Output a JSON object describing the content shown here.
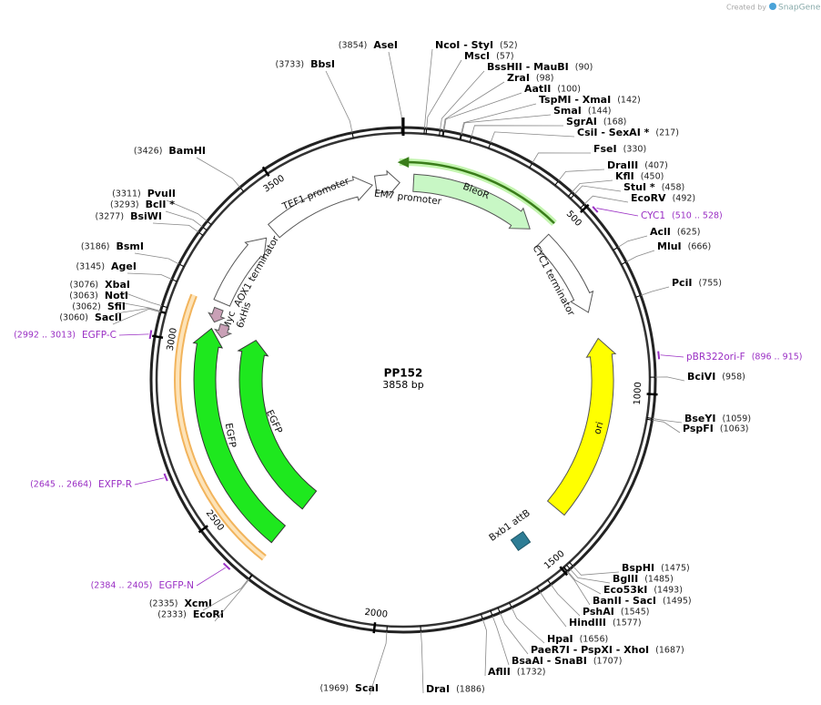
{
  "credit": "Created by",
  "brand": "SnapGene",
  "map": {
    "name": "PP152",
    "length": "3858 bp"
  },
  "ruler": [
    500,
    1000,
    1500,
    2000,
    2500,
    3000,
    3500
  ],
  "sites": [
    {
      "name": "AseI",
      "position": "(3854)"
    },
    {
      "name": "BbsI",
      "position": "(3733)"
    },
    {
      "name": "BamHI",
      "position": "(3426)"
    },
    {
      "name": "PvuII",
      "position": "(3311)"
    },
    {
      "name": "BclI *",
      "position": "(3293)"
    },
    {
      "name": "BsiWI",
      "position": "(3277)"
    },
    {
      "name": "BsmI",
      "position": "(3186)"
    },
    {
      "name": "AgeI",
      "position": "(3145)"
    },
    {
      "name": "XbaI",
      "position": "(3076)"
    },
    {
      "name": "NotI",
      "position": "(3063)"
    },
    {
      "name": "SfiI",
      "position": "(3062)"
    },
    {
      "name": "SacII",
      "position": "(3060)"
    },
    {
      "name": "XcmI",
      "position": "(2335)"
    },
    {
      "name": "EcoRI",
      "position": "(2333)"
    },
    {
      "name": "ScaI",
      "position": "(1969)"
    },
    {
      "name": "NcoI  -  StyI",
      "position": "(52)"
    },
    {
      "name": "MscI",
      "position": "(57)"
    },
    {
      "name": "BssHII  -  MauBI",
      "position": "(90)"
    },
    {
      "name": "ZraI",
      "position": "(98)"
    },
    {
      "name": "AatII",
      "position": "(100)"
    },
    {
      "name": "TspMI  -  XmaI",
      "position": "(142)"
    },
    {
      "name": "SmaI",
      "position": "(144)"
    },
    {
      "name": "SgrAI",
      "position": "(168)"
    },
    {
      "name": "CsiI  -  SexAI *",
      "position": "(217)"
    },
    {
      "name": "FseI",
      "position": "(330)"
    },
    {
      "name": "DraIII",
      "position": "(407)"
    },
    {
      "name": "KflI",
      "position": "(450)"
    },
    {
      "name": "StuI *",
      "position": "(458)"
    },
    {
      "name": "EcoRV",
      "position": "(492)"
    },
    {
      "name": "AclI",
      "position": "(625)"
    },
    {
      "name": "MluI",
      "position": "(666)"
    },
    {
      "name": "PciI",
      "position": "(755)"
    },
    {
      "name": "BciVI",
      "position": "(958)"
    },
    {
      "name": "BseYI",
      "position": "(1059)"
    },
    {
      "name": "PspFI",
      "position": "(1063)"
    },
    {
      "name": "BspHI",
      "position": "(1475)"
    },
    {
      "name": "BglII",
      "position": "(1485)"
    },
    {
      "name": "Eco53kI",
      "position": "(1493)"
    },
    {
      "name": "BanII  -  SacI",
      "position": "(1495)"
    },
    {
      "name": "PshAI",
      "position": "(1545)"
    },
    {
      "name": "HindIII",
      "position": "(1577)"
    },
    {
      "name": "HpaI",
      "position": "(1656)"
    },
    {
      "name": "PaeR7I  -  PspXI  -  XhoI",
      "position": "(1687)"
    },
    {
      "name": "BsaAI  -  SnaBI",
      "position": "(1707)"
    },
    {
      "name": "AflII",
      "position": "(1732)"
    },
    {
      "name": "DraI",
      "position": "(1886)"
    }
  ],
  "primers": [
    {
      "name": "CYC1",
      "range": "(510 .. 528)"
    },
    {
      "name": "pBR322ori-F",
      "range": "(896 .. 915)"
    },
    {
      "name": "EXFP-R",
      "range": "(2645 .. 2664)"
    },
    {
      "name": "EGFP-N",
      "range": "(2384 .. 2405)"
    },
    {
      "name": "EGFP-C",
      "range": "(2992 .. 3013)"
    }
  ],
  "features": [
    {
      "label": "TEF1 promoter"
    },
    {
      "label": "EM7 promoter"
    },
    {
      "label": "BleoR"
    },
    {
      "label": "CYC1 terminator"
    },
    {
      "label": "AOX1 terminator"
    },
    {
      "label": "Myc"
    },
    {
      "label": "6xHis"
    },
    {
      "label": "EGFP"
    },
    {
      "label": "EGFP"
    },
    {
      "label": "ori"
    },
    {
      "label": "Bxb1 attB"
    }
  ]
}
